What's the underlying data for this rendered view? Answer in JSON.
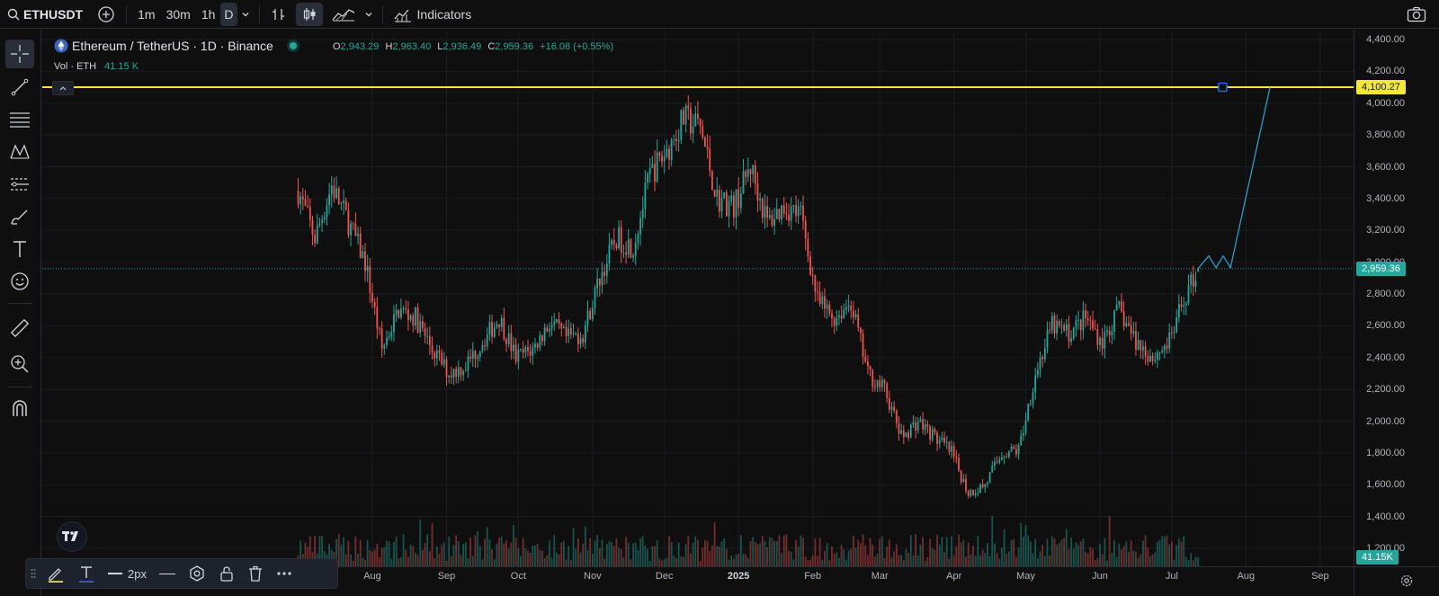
{
  "header": {
    "symbol": "ETHUSDT",
    "intervals": [
      "1m",
      "30m",
      "1h",
      "D"
    ],
    "active_interval": "D",
    "indicators_label": "Indicators"
  },
  "legend": {
    "title": "Ethereum / TetherUS · 1D · Binance",
    "open_key": "O",
    "open": "2,943.29",
    "high_key": "H",
    "high": "2,963.40",
    "low_key": "L",
    "low": "2,936.49",
    "close_key": "C",
    "close": "2,959.36",
    "change": "+16.08 (+0.55%)",
    "vol_label": "Vol · ETH",
    "vol_value": "41.15 K"
  },
  "labels": {
    "alert_price": "4,100.27",
    "last_price": "2,959.36",
    "volume": "41.15K"
  },
  "drawing_toolbar": {
    "width_label": "2px"
  },
  "colors": {
    "up": "#26a69a",
    "down": "#ef5350",
    "horizontal_line": "#f5e63c",
    "projection": "#2ea8d8",
    "background": "#0f0f0f"
  },
  "chart_data": {
    "type": "candlestick",
    "symbol": "ETHUSDT",
    "interval": "1D",
    "x_ticks": [
      "Aug",
      "Sep",
      "Oct",
      "Nov",
      "Dec",
      "2025",
      "Feb",
      "Mar",
      "Apr",
      "May",
      "Jun",
      "Jul",
      "Aug",
      "Sep"
    ],
    "y_ticks": [
      "4,400.00",
      "4,200.00",
      "4,000.00",
      "3,800.00",
      "3,600.00",
      "3,400.00",
      "3,200.00",
      "3,000.00",
      "2,800.00",
      "2,600.00",
      "2,400.00",
      "2,200.00",
      "2,000.00",
      "1,800.00",
      "1,600.00",
      "1,400.00",
      "1,200.00"
    ],
    "ylim": [
      1200,
      4420
    ],
    "horizontal_line": 4100.27,
    "last_price": 2959.36,
    "approx_close_path": [
      [
        "2024-07-01",
        3450
      ],
      [
        "2024-07-08",
        3150
      ],
      [
        "2024-07-15",
        3480
      ],
      [
        "2024-07-22",
        3250
      ],
      [
        "2024-07-29",
        3000
      ],
      [
        "2024-08-05",
        2450
      ],
      [
        "2024-08-12",
        2700
      ],
      [
        "2024-08-19",
        2650
      ],
      [
        "2024-08-26",
        2450
      ],
      [
        "2024-09-02",
        2300
      ],
      [
        "2024-09-09",
        2350
      ],
      [
        "2024-09-16",
        2500
      ],
      [
        "2024-09-23",
        2650
      ],
      [
        "2024-09-30",
        2400
      ],
      [
        "2024-10-07",
        2450
      ],
      [
        "2024-10-14",
        2620
      ],
      [
        "2024-10-21",
        2520
      ],
      [
        "2024-10-28",
        2550
      ],
      [
        "2024-11-04",
        2900
      ],
      [
        "2024-11-11",
        3150
      ],
      [
        "2024-11-18",
        3100
      ],
      [
        "2024-11-25",
        3550
      ],
      [
        "2024-12-02",
        3700
      ],
      [
        "2024-12-09",
        3900
      ],
      [
        "2024-12-16",
        3850
      ],
      [
        "2024-12-23",
        3400
      ],
      [
        "2024-12-30",
        3350
      ],
      [
        "2025-01-06",
        3600
      ],
      [
        "2025-01-13",
        3250
      ],
      [
        "2025-01-20",
        3350
      ],
      [
        "2025-01-27",
        3300
      ],
      [
        "2025-02-03",
        2750
      ],
      [
        "2025-02-10",
        2650
      ],
      [
        "2025-02-17",
        2750
      ],
      [
        "2025-02-24",
        2300
      ],
      [
        "2025-03-03",
        2200
      ],
      [
        "2025-03-10",
        1900
      ],
      [
        "2025-03-17",
        2000
      ],
      [
        "2025-03-24",
        1900
      ],
      [
        "2025-03-31",
        1800
      ],
      [
        "2025-04-07",
        1550
      ],
      [
        "2025-04-14",
        1600
      ],
      [
        "2025-04-21",
        1800
      ],
      [
        "2025-04-28",
        1820
      ],
      [
        "2025-05-05",
        2300
      ],
      [
        "2025-05-12",
        2600
      ],
      [
        "2025-05-19",
        2550
      ],
      [
        "2025-05-26",
        2650
      ],
      [
        "2025-06-02",
        2500
      ],
      [
        "2025-06-09",
        2700
      ],
      [
        "2025-06-16",
        2500
      ],
      [
        "2025-06-23",
        2400
      ],
      [
        "2025-06-30",
        2500
      ],
      [
        "2025-07-07",
        2800
      ],
      [
        "2025-07-12",
        2959.36
      ]
    ]
  }
}
